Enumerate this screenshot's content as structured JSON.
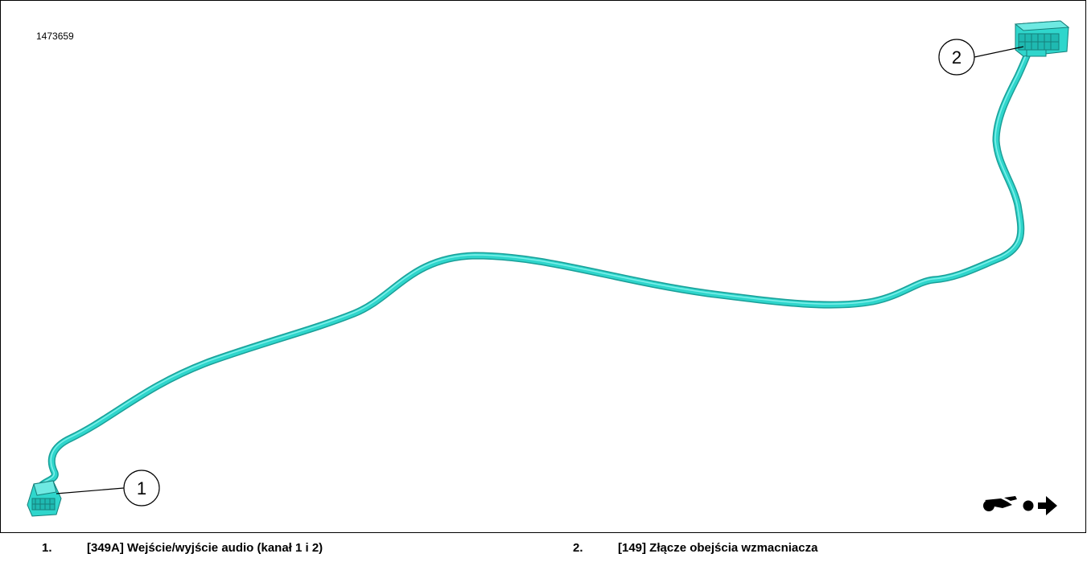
{
  "figure": {
    "id": "1473659"
  },
  "callouts": [
    {
      "number": "1",
      "text": "[349A] Wejście/wyjście audio (kanał 1 i 2)"
    },
    {
      "number": "2",
      "text": "[149] Złącze obejścia wzmacniacza"
    }
  ],
  "legend": [
    {
      "number": "1.",
      "text": "[349A] Wejście/wyjście audio (kanał 1 i 2)"
    },
    {
      "number": "2.",
      "text": "[149] Złącze obejścia wzmacniacza"
    }
  ],
  "icons": {
    "orientation": "motorcycle-forward-arrow-icon"
  },
  "colors": {
    "harness": "#2fd6cc",
    "harness_dark": "#1a9f98",
    "line": "#000000"
  }
}
